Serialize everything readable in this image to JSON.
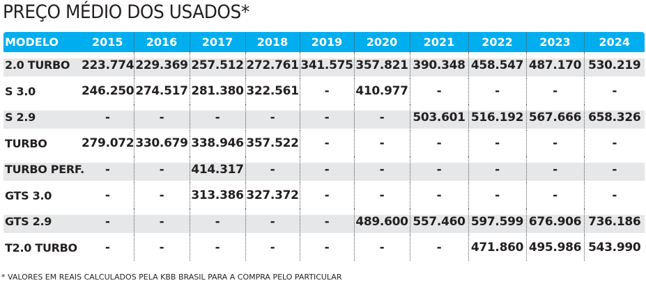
{
  "title": "PREÇO MÉDIO DOS USADOS*",
  "header": [
    "MODELO",
    "2015",
    "2016",
    "2017",
    "2018",
    "2019",
    "2020",
    "2021",
    "2022",
    "2023",
    "2024"
  ],
  "rows": [
    {
      "model": "2.0 TURBO",
      "values": [
        "223.774",
        "229.369",
        "257.512",
        "272.761",
        "341.575",
        "357.821",
        "390.348",
        "458.547",
        "487.170",
        "530.219"
      ]
    },
    {
      "model": "S 3.0",
      "values": [
        "246.250",
        "274.517",
        "281.380",
        "322.561",
        "-",
        "410.977",
        "-",
        "-",
        "-",
        "-"
      ]
    },
    {
      "model": "S 2.9",
      "values": [
        "-",
        "-",
        "-",
        "-",
        "-",
        "-",
        "503.601",
        "516.192",
        "567.666",
        "658.326"
      ]
    },
    {
      "model": "TURBO",
      "values": [
        "279.072",
        "330.679",
        "338.946",
        "357.522",
        "-",
        "-",
        "-",
        "-",
        "-",
        "-"
      ]
    },
    {
      "model": "TURBO PERF.",
      "values": [
        "-",
        "-",
        "414.317",
        "-",
        "-",
        "-",
        "-",
        "-",
        "-",
        "-"
      ]
    },
    {
      "model": "GTS 3.0",
      "values": [
        "-",
        "-",
        "313.386",
        "327.372",
        "-",
        "-",
        "-",
        "-",
        "-",
        "-"
      ]
    },
    {
      "model": "GTS 2.9",
      "values": [
        "-",
        "-",
        "-",
        "-",
        "-",
        "489.600",
        "557.460",
        "597.599",
        "676.906",
        "736.186"
      ]
    },
    {
      "model": "T2.0 TURBO",
      "values": [
        "-",
        "-",
        "-",
        "-",
        "-",
        "-",
        "-",
        "471.860",
        "495.986",
        "543.990"
      ]
    }
  ],
  "footnote": "* VALORES EM REAIS CALCULADOS PELA KBB BRASIL PARA A COMPRA PELO PARTICULAR",
  "colors": {
    "header_bg": "#00aeef",
    "stripe": "#e6e7e8",
    "text": "#231f20"
  }
}
